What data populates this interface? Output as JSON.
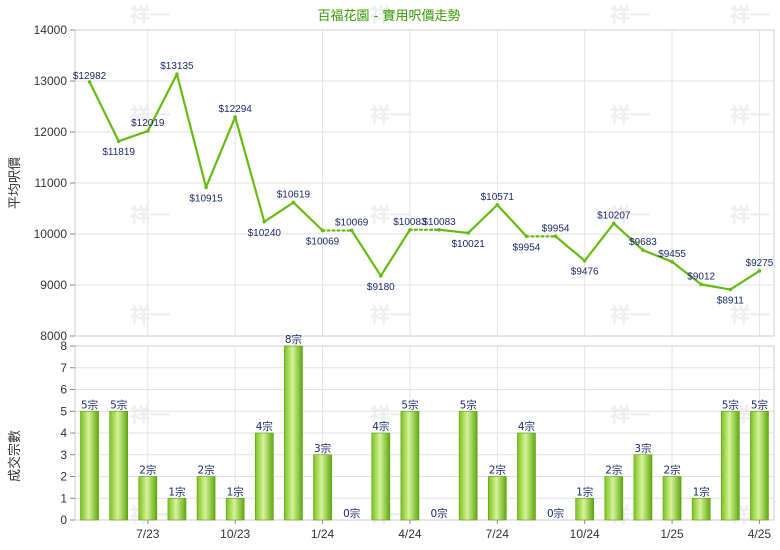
{
  "chart_data": [
    {
      "type": "line",
      "title": "百福花園 - 實用呎價走勢",
      "ylabel": "平均呎價",
      "ylim": [
        8000,
        14000
      ],
      "yticks": [
        8000,
        9000,
        10000,
        11000,
        12000,
        13000,
        14000
      ],
      "grid": true,
      "color": "#66bb11",
      "x_count": 24,
      "values": [
        12982,
        11819,
        12019,
        13135,
        10915,
        12294,
        10240,
        10619,
        10069,
        10069,
        9180,
        10083,
        10083,
        10021,
        10571,
        9954,
        9954,
        9476,
        10207,
        9683,
        9455,
        9012,
        8911,
        9275
      ],
      "labels": [
        "$12982",
        "$11819",
        "$12019",
        "$13135",
        "$10915",
        "$12294",
        "$10240",
        "$10619",
        "$10069",
        "$10069",
        "$9180",
        "$10083",
        "$10083",
        "$10021",
        "$10571",
        "$9954",
        "$9954",
        "$9476",
        "$10207",
        "$9683",
        "$9455",
        "$9012",
        "$8911",
        "$9275"
      ],
      "dotted_segments": [
        8,
        11,
        15
      ]
    },
    {
      "type": "bar",
      "ylabel": "成交宗數",
      "ylim": [
        0,
        8
      ],
      "yticks": [
        0,
        1,
        2,
        3,
        4,
        5,
        6,
        7,
        8
      ],
      "grid": true,
      "color": "#77cc22",
      "values": [
        5,
        5,
        2,
        1,
        2,
        1,
        4,
        8,
        3,
        0,
        4,
        5,
        0,
        5,
        2,
        4,
        0,
        1,
        2,
        3,
        2,
        1,
        5,
        5
      ],
      "labels": [
        "5宗",
        "5宗",
        "2宗",
        "1宗",
        "2宗",
        "1宗",
        "4宗",
        "8宗",
        "3宗",
        "0宗",
        "4宗",
        "5宗",
        "0宗",
        "5宗",
        "2宗",
        "4宗",
        "0宗",
        "1宗",
        "2宗",
        "3宗",
        "2宗",
        "1宗",
        "5宗",
        "5宗"
      ],
      "xticks": [
        {
          "index": 2,
          "label": "7/23"
        },
        {
          "index": 5,
          "label": "10/23"
        },
        {
          "index": 8,
          "label": "1/24"
        },
        {
          "index": 11,
          "label": "4/24"
        },
        {
          "index": 14,
          "label": "7/24"
        },
        {
          "index": 17,
          "label": "10/24"
        },
        {
          "index": 20,
          "label": "1/25"
        },
        {
          "index": 23,
          "label": "4/25"
        }
      ]
    }
  ],
  "watermark": "祥一"
}
